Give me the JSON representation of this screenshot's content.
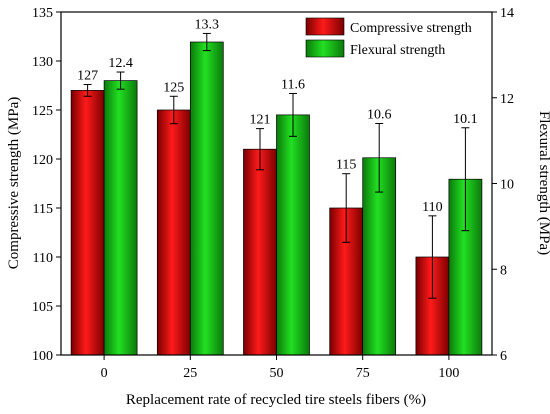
{
  "chart_data": {
    "type": "bar",
    "categories": [
      "0",
      "25",
      "50",
      "75",
      "100"
    ],
    "xlabel": "Replacement rate of recycled tire steels fibers (%)",
    "ylabel": "Compressive strength (MPa)",
    "y2label": "Flexural strength (MPa)",
    "ylim": [
      100,
      135
    ],
    "y2lim": [
      6,
      14
    ],
    "yticks": [
      100,
      105,
      110,
      115,
      120,
      125,
      130,
      135
    ],
    "y2ticks": [
      6,
      8,
      10,
      12,
      14
    ],
    "grid": false,
    "legend_position": "top-right",
    "series": [
      {
        "name": "Compressive strength",
        "axis": "left",
        "color": "#e00000",
        "values": [
          127,
          125,
          121,
          115,
          110
        ],
        "errors": [
          0.6,
          1.4,
          2.1,
          3.5,
          4.2
        ],
        "labels": [
          "127",
          "125",
          "121",
          "115",
          "110"
        ]
      },
      {
        "name": "Flexural strength",
        "axis": "right",
        "color": "#16c816",
        "values": [
          12.4,
          13.3,
          11.6,
          10.6,
          10.1
        ],
        "errors": [
          0.2,
          0.2,
          0.5,
          0.8,
          1.2
        ],
        "labels": [
          "12.4",
          "13.3",
          "11.6",
          "10.6",
          "10.1"
        ]
      }
    ]
  }
}
